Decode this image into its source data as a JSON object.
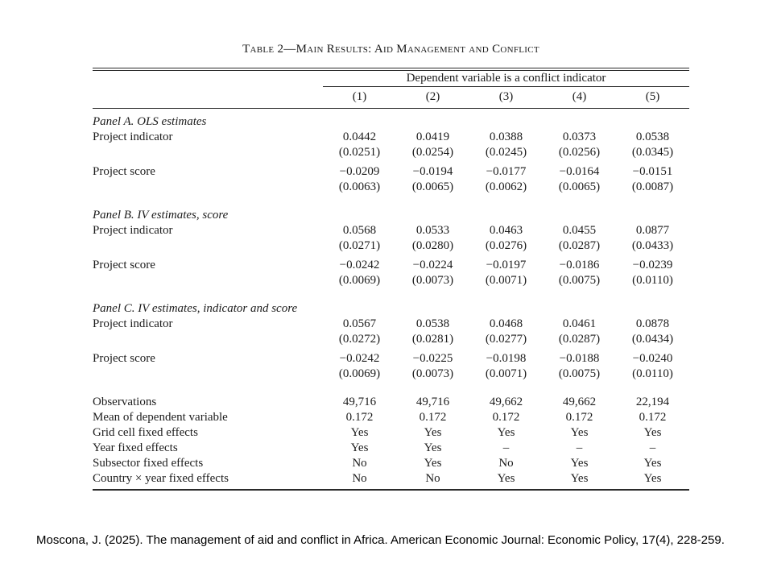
{
  "table": {
    "title": "Table 2—Main Results: Aid Management and Conflict",
    "spanner": "Dependent variable is a conflict indicator",
    "columns": [
      "(1)",
      "(2)",
      "(3)",
      "(4)",
      "(5)"
    ],
    "panels": [
      {
        "label": "Panel A. OLS estimates",
        "rows": [
          {
            "label": "Project indicator",
            "values": [
              "0.0442",
              "0.0419",
              "0.0388",
              "0.0373",
              "0.0538"
            ],
            "se": [
              "(0.0251)",
              "(0.0254)",
              "(0.0245)",
              "(0.0256)",
              "(0.0345)"
            ]
          },
          {
            "label": "Project score",
            "values": [
              "−0.0209",
              "−0.0194",
              "−0.0177",
              "−0.0164",
              "−0.0151"
            ],
            "se": [
              "(0.0063)",
              "(0.0065)",
              "(0.0062)",
              "(0.0065)",
              "(0.0087)"
            ]
          }
        ]
      },
      {
        "label": "Panel B. IV estimates, score",
        "rows": [
          {
            "label": "Project indicator",
            "values": [
              "0.0568",
              "0.0533",
              "0.0463",
              "0.0455",
              "0.0877"
            ],
            "se": [
              "(0.0271)",
              "(0.0280)",
              "(0.0276)",
              "(0.0287)",
              "(0.0433)"
            ]
          },
          {
            "label": "Project score",
            "values": [
              "−0.0242",
              "−0.0224",
              "−0.0197",
              "−0.0186",
              "−0.0239"
            ],
            "se": [
              "(0.0069)",
              "(0.0073)",
              "(0.0071)",
              "(0.0075)",
              "(0.0110)"
            ]
          }
        ]
      },
      {
        "label": "Panel C. IV estimates, indicator and score",
        "rows": [
          {
            "label": "Project indicator",
            "values": [
              "0.0567",
              "0.0538",
              "0.0468",
              "0.0461",
              "0.0878"
            ],
            "se": [
              "(0.0272)",
              "(0.0281)",
              "(0.0277)",
              "(0.0287)",
              "(0.0434)"
            ]
          },
          {
            "label": "Project score",
            "values": [
              "−0.0242",
              "−0.0225",
              "−0.0198",
              "−0.0188",
              "−0.0240"
            ],
            "se": [
              "(0.0069)",
              "(0.0073)",
              "(0.0071)",
              "(0.0075)",
              "(0.0110)"
            ]
          }
        ]
      }
    ],
    "summary_rows": [
      {
        "label": "Observations",
        "values": [
          "49,716",
          "49,716",
          "49,662",
          "49,662",
          "22,194"
        ]
      },
      {
        "label": "Mean of dependent variable",
        "values": [
          "0.172",
          "0.172",
          "0.172",
          "0.172",
          "0.172"
        ]
      },
      {
        "label": "Grid cell fixed effects",
        "values": [
          "Yes",
          "Yes",
          "Yes",
          "Yes",
          "Yes"
        ]
      },
      {
        "label": "Year fixed effects",
        "values": [
          "Yes",
          "Yes",
          "–",
          "–",
          "–"
        ]
      },
      {
        "label": "Subsector fixed effects",
        "values": [
          "No",
          "Yes",
          "No",
          "Yes",
          "Yes"
        ]
      },
      {
        "label": "Country × year fixed effects",
        "values": [
          "No",
          "No",
          "Yes",
          "Yes",
          "Yes"
        ]
      }
    ]
  },
  "citation": "Moscona, J. (2025). The management of aid and conflict in Africa. American Economic Journal: Economic Policy, 17(4), 228-259."
}
